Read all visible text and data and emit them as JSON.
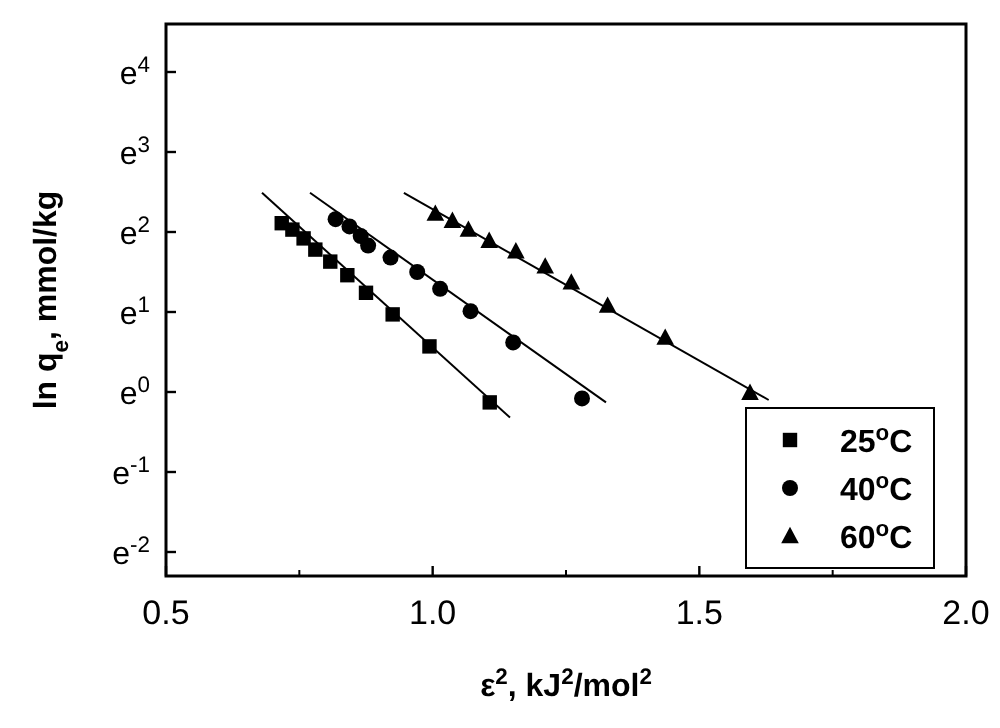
{
  "chart_data": {
    "type": "scatter",
    "xlabel": "ε$^{2}$, kJ$^{2}$/mol$^{2}$",
    "ylabel": "ln q$_{e}$, mmol/kg",
    "xlim": [
      0.5,
      2.0
    ],
    "xticks": [
      {
        "value": 0.5,
        "label": "0.5"
      },
      {
        "value": 1,
        "label": "1.0"
      },
      {
        "value": 1.5,
        "label": "1.5"
      },
      {
        "value": 2,
        "label": "2.0"
      }
    ],
    "ylim": [
      -2.3,
      4.6
    ],
    "yticks": [
      {
        "value": -2,
        "label": "e$^{-2}$"
      },
      {
        "value": -1,
        "label": "e$^{-1}$"
      },
      {
        "value": 0,
        "label": "e$^{0}$"
      },
      {
        "value": 1,
        "label": "e$^{1}$"
      },
      {
        "value": 2,
        "label": "e$^{2}$"
      },
      {
        "value": 3,
        "label": "e$^{3}$"
      },
      {
        "value": 4,
        "label": "e$^{4}$"
      }
    ],
    "grid": false,
    "legend": "bottom right",
    "series": [
      {
        "name": "25$^{o}$C",
        "color": "#000000",
        "marker": "square",
        "x": [
          0.717,
          0.737,
          0.758,
          0.78,
          0.808,
          0.84,
          0.875,
          0.925,
          0.994,
          1.107
        ],
        "values": [
          2.11,
          2.03,
          1.92,
          1.78,
          1.63,
          1.46,
          1.24,
          0.97,
          0.57,
          -0.13
        ]
      },
      {
        "name": "40$^{o}$C",
        "color": "#000000",
        "marker": "circle",
        "x": [
          0.818,
          0.844,
          0.865,
          0.879,
          0.921,
          0.971,
          1.014,
          1.071,
          1.151,
          1.28
        ],
        "values": [
          2.16,
          2.07,
          1.95,
          1.83,
          1.68,
          1.5,
          1.29,
          1.01,
          0.62,
          -0.08
        ]
      },
      {
        "name": "60$^{o}$C",
        "color": "#000000",
        "marker": "triangle",
        "x": [
          1.005,
          1.037,
          1.067,
          1.106,
          1.156,
          1.211,
          1.26,
          1.328,
          1.436,
          1.595
        ],
        "values": [
          2.23,
          2.14,
          2.03,
          1.89,
          1.76,
          1.57,
          1.37,
          1.08,
          0.68,
          -0.01
        ]
      },
      {
        "type": "line",
        "color": "#000000",
        "marker": "none",
        "x": [
          0.68,
          1.145
        ],
        "values": [
          2.49,
          -0.32
        ]
      },
      {
        "type": "line",
        "color": "#000000",
        "marker": "none",
        "x": [
          0.77,
          1.325
        ],
        "values": [
          2.49,
          -0.13
        ]
      },
      {
        "type": "line",
        "color": "#000000",
        "marker": "none",
        "x": [
          0.946,
          1.63
        ],
        "values": [
          2.49,
          -0.1
        ]
      }
    ]
  }
}
